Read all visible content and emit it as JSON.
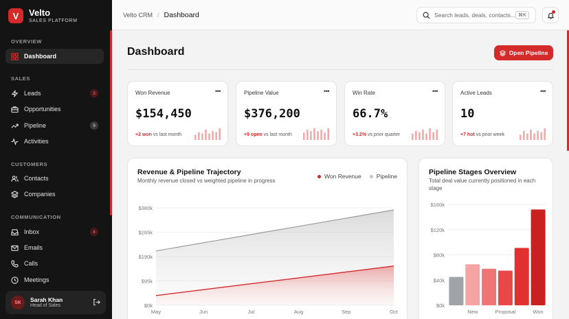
{
  "brand": {
    "logo_letter": "V",
    "name": "Velto",
    "subtitle": "SALES PLATFORM"
  },
  "sidebar": {
    "sections": [
      {
        "label": "OVERVIEW",
        "items": [
          {
            "label": "Dashboard",
            "icon": "grid-icon",
            "active": true
          }
        ]
      },
      {
        "label": "SALES",
        "items": [
          {
            "label": "Leads",
            "icon": "bolt-icon",
            "badge": "3"
          },
          {
            "label": "Opportunities",
            "icon": "briefcase-icon"
          },
          {
            "label": "Pipeline",
            "icon": "trend-icon",
            "badge": "9"
          },
          {
            "label": "Activities",
            "icon": "pulse-icon"
          }
        ]
      },
      {
        "label": "CUSTOMERS",
        "items": [
          {
            "label": "Contacts",
            "icon": "users-icon"
          },
          {
            "label": "Companies",
            "icon": "layers-icon"
          }
        ]
      },
      {
        "label": "COMMUNICATION",
        "items": [
          {
            "label": "Inbox",
            "icon": "inbox-icon",
            "badge": "4"
          },
          {
            "label": "Emails",
            "icon": "mail-icon"
          },
          {
            "label": "Calls",
            "icon": "phone-icon"
          },
          {
            "label": "Meetings",
            "icon": "clock-icon"
          }
        ]
      }
    ],
    "profile": {
      "initials": "SK",
      "name": "Sarah Khan",
      "role": "Head of Sales"
    }
  },
  "header": {
    "breadcrumb_root": "Velto CRM",
    "breadcrumb_sep": "/",
    "breadcrumb_current": "Dashboard",
    "search_placeholder": "Search leads, deals, contacts...",
    "search_shortcut": "⌘K"
  },
  "main": {
    "title": "Dashboard",
    "primary_action": "Open Pipeline",
    "kpis": [
      {
        "label": "Won Revenue",
        "value": "$154,450",
        "delta": "+2 won",
        "delta_text": " vs last month",
        "spark": [
          4,
          6,
          5,
          8,
          5,
          7,
          6,
          9
        ]
      },
      {
        "label": "Pipeline Value",
        "value": "$376,200",
        "delta": "+9 open",
        "delta_text": " vs last month",
        "spark": [
          5,
          7,
          6,
          8,
          6,
          7,
          5,
          8
        ]
      },
      {
        "label": "Win Rate",
        "value": "66.7%",
        "delta": "+3.2%",
        "delta_text": " vs prior quarter",
        "spark": [
          5,
          7,
          6,
          8,
          5,
          9,
          6,
          8
        ]
      },
      {
        "label": "Active Leads",
        "value": "10",
        "delta": "+7 hot",
        "delta_text": " vs prior week",
        "spark": [
          4,
          7,
          5,
          8,
          5,
          7,
          6,
          9
        ]
      }
    ]
  },
  "trajectory": {
    "title": "Revenue & Pipeline Trajectory",
    "subtitle": "Monthly revenue closed vs weighted pipeline in progress",
    "colors": {
      "won": "#d42a2a",
      "pipeline": "#c4c4c4"
    }
  },
  "stages": {
    "title": "Pipeline Stages Overview",
    "subtitle": "Total deal value currently positioned in each stage"
  },
  "chart_data": [
    {
      "type": "area",
      "categories": [
        "May",
        "Jun",
        "Jul",
        "Aug",
        "Sep",
        "Oct"
      ],
      "ylim": [
        0,
        380000
      ],
      "yticks": [
        "$0k",
        "$95k",
        "$190k",
        "$285k",
        "$380k"
      ],
      "series": [
        {
          "name": "Won Revenue",
          "values": [
            38000,
            61000,
            84000,
            107000,
            130000,
            153000
          ],
          "color": "#d42a2a"
        },
        {
          "name": "Pipeline",
          "values": [
            212000,
            244000,
            276000,
            308000,
            340000,
            372000
          ],
          "color": "#9a9a9a"
        }
      ]
    },
    {
      "type": "bar",
      "categories": [
        "",
        "New",
        "",
        "Proposal",
        "",
        "Won"
      ],
      "values": [
        45000,
        65000,
        58000,
        55000,
        91000,
        152000
      ],
      "colors": [
        "#a0a3a7",
        "#f5a3a3",
        "#f07575",
        "#e84848",
        "#e03030",
        "#c92020"
      ],
      "ylim": [
        0,
        160000
      ],
      "yticks": [
        "$0k",
        "$40k",
        "$80k",
        "$120k",
        "$160k"
      ]
    }
  ]
}
